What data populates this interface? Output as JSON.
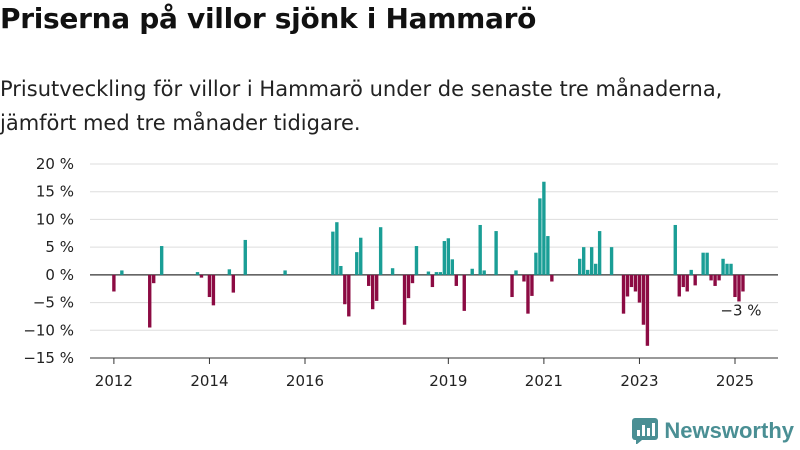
{
  "title": "Priserna på villor sjönk i Hammarö",
  "subtitle": "Prisutveckling för villor i Hammarö under de senaste tre månaderna, jämfört med tre månader tidigare.",
  "brand": {
    "name": "Newsworthy",
    "icon": "bar-chart-logo-icon"
  },
  "colors": {
    "positive": "#1a9e96",
    "negative": "#8c0b43",
    "grid": "#dddddd",
    "axis": "#333333",
    "brand": "#4a8f94"
  },
  "chart_data": {
    "type": "bar",
    "x_unit": "month",
    "ylim": [
      -15,
      20
    ],
    "y_ticks": [
      20,
      15,
      10,
      5,
      0,
      -5,
      -10,
      -15
    ],
    "y_tick_labels": [
      "20 %",
      "15 %",
      "10 %",
      "5 %",
      "0 %",
      "−5 %",
      "−10 %",
      "−15 %"
    ],
    "x_ticks": [
      "2012",
      "2014",
      "2016",
      "2019",
      "2021",
      "2023",
      "2025"
    ],
    "grid": true,
    "legend": "none",
    "end_label": "−3 %",
    "values": [
      {
        "date": "2012-01",
        "value": -3
      },
      {
        "date": "2012-03",
        "value": 0.8
      },
      {
        "date": "2012-10",
        "value": -9.5
      },
      {
        "date": "2012-11",
        "value": -1.5
      },
      {
        "date": "2013-01",
        "value": 5.2
      },
      {
        "date": "2013-10",
        "value": 0.5
      },
      {
        "date": "2013-11",
        "value": -0.5
      },
      {
        "date": "2014-01",
        "value": -4
      },
      {
        "date": "2014-02",
        "value": -5.5
      },
      {
        "date": "2014-06",
        "value": 1
      },
      {
        "date": "2014-07",
        "value": -3.2
      },
      {
        "date": "2014-10",
        "value": 6.3
      },
      {
        "date": "2015-08",
        "value": 0.8
      },
      {
        "date": "2016-08",
        "value": 7.8
      },
      {
        "date": "2016-09",
        "value": 9.5
      },
      {
        "date": "2016-10",
        "value": 1.6
      },
      {
        "date": "2016-11",
        "value": -5.3
      },
      {
        "date": "2016-12",
        "value": -7.5
      },
      {
        "date": "2017-02",
        "value": 4.1
      },
      {
        "date": "2017-03",
        "value": 6.7
      },
      {
        "date": "2017-05",
        "value": -2
      },
      {
        "date": "2017-06",
        "value": -6.2
      },
      {
        "date": "2017-07",
        "value": -4.7
      },
      {
        "date": "2017-08",
        "value": 8.6
      },
      {
        "date": "2017-11",
        "value": 1.2
      },
      {
        "date": "2018-02",
        "value": -9
      },
      {
        "date": "2018-03",
        "value": -4.2
      },
      {
        "date": "2018-04",
        "value": -1.5
      },
      {
        "date": "2018-05",
        "value": 5.2
      },
      {
        "date": "2018-08",
        "value": 0.6
      },
      {
        "date": "2018-09",
        "value": -2.2
      },
      {
        "date": "2018-10",
        "value": 0.5
      },
      {
        "date": "2018-11",
        "value": 0.5
      },
      {
        "date": "2018-12",
        "value": 6.1
      },
      {
        "date": "2019-01",
        "value": 6.6
      },
      {
        "date": "2019-02",
        "value": 2.8
      },
      {
        "date": "2019-03",
        "value": -2
      },
      {
        "date": "2019-05",
        "value": -6.5
      },
      {
        "date": "2019-07",
        "value": 1.1
      },
      {
        "date": "2019-09",
        "value": 9
      },
      {
        "date": "2019-10",
        "value": 0.8
      },
      {
        "date": "2020-01",
        "value": 7.9
      },
      {
        "date": "2020-05",
        "value": -4
      },
      {
        "date": "2020-06",
        "value": 0.8
      },
      {
        "date": "2020-08",
        "value": -1.2
      },
      {
        "date": "2020-09",
        "value": -7
      },
      {
        "date": "2020-10",
        "value": -3.8
      },
      {
        "date": "2020-11",
        "value": 4
      },
      {
        "date": "2020-12",
        "value": 13.8
      },
      {
        "date": "2021-01",
        "value": 16.8
      },
      {
        "date": "2021-02",
        "value": 7
      },
      {
        "date": "2021-03",
        "value": -1.2
      },
      {
        "date": "2021-10",
        "value": 2.9
      },
      {
        "date": "2021-11",
        "value": 5
      },
      {
        "date": "2021-12",
        "value": 0.9
      },
      {
        "date": "2022-01",
        "value": 5
      },
      {
        "date": "2022-02",
        "value": 2
      },
      {
        "date": "2022-03",
        "value": 7.9
      },
      {
        "date": "2022-06",
        "value": 5
      },
      {
        "date": "2022-09",
        "value": -7
      },
      {
        "date": "2022-10",
        "value": -3.9
      },
      {
        "date": "2022-11",
        "value": -2.2
      },
      {
        "date": "2022-12",
        "value": -3
      },
      {
        "date": "2023-01",
        "value": -5
      },
      {
        "date": "2023-02",
        "value": -9
      },
      {
        "date": "2023-03",
        "value": -12.8
      },
      {
        "date": "2023-10",
        "value": 9
      },
      {
        "date": "2023-11",
        "value": -3.9
      },
      {
        "date": "2023-12",
        "value": -2.2
      },
      {
        "date": "2024-01",
        "value": -3
      },
      {
        "date": "2024-02",
        "value": 0.9
      },
      {
        "date": "2024-03",
        "value": -1.9
      },
      {
        "date": "2024-05",
        "value": 4
      },
      {
        "date": "2024-06",
        "value": 4
      },
      {
        "date": "2024-07",
        "value": -1
      },
      {
        "date": "2024-08",
        "value": -2
      },
      {
        "date": "2024-09",
        "value": -1
      },
      {
        "date": "2024-10",
        "value": 2.9
      },
      {
        "date": "2024-11",
        "value": 2
      },
      {
        "date": "2024-12",
        "value": 2
      },
      {
        "date": "2025-01",
        "value": -4
      },
      {
        "date": "2025-02",
        "value": -4.8
      },
      {
        "date": "2025-03",
        "value": -3
      }
    ]
  }
}
